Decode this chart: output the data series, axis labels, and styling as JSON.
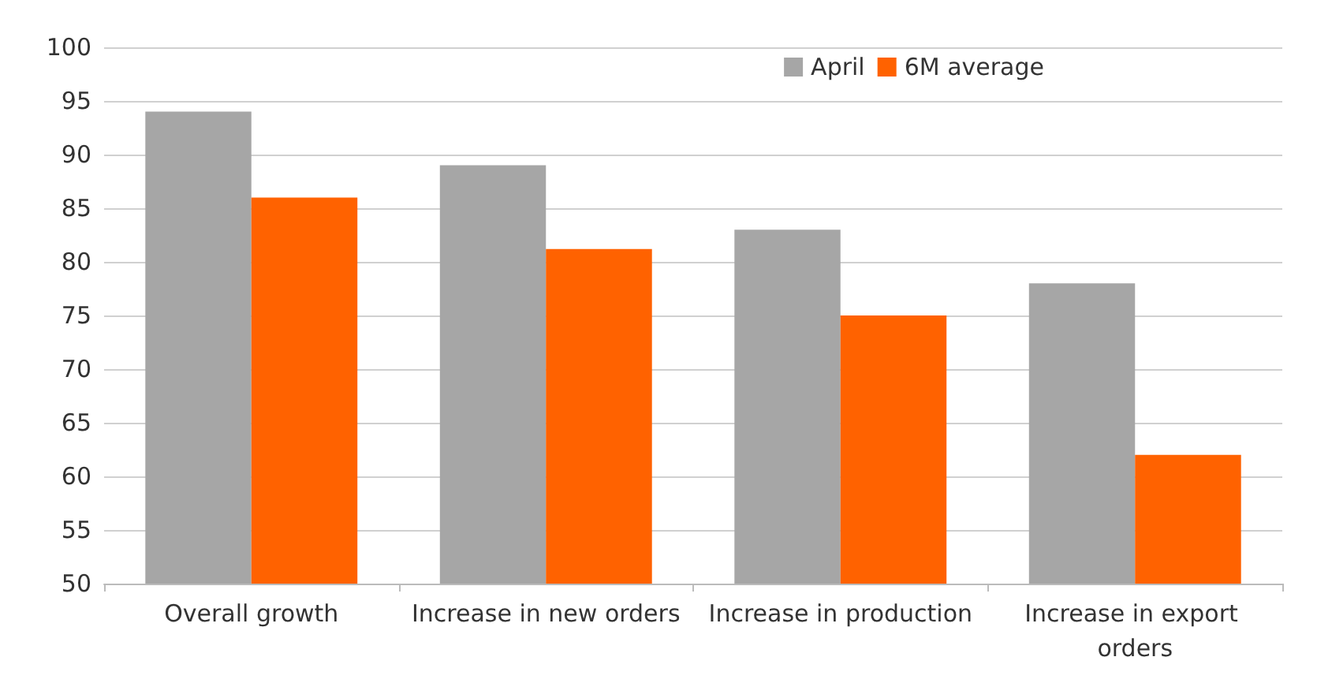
{
  "chart_data": {
    "type": "bar",
    "categories": [
      "Overall growth",
      "Increase in new orders",
      "Increase in production",
      "Increase in export orders"
    ],
    "series": [
      {
        "name": "April",
        "color": "#a6a6a6",
        "values": [
          94,
          89,
          83,
          78
        ]
      },
      {
        "name": "6M average",
        "color": "#ff6200",
        "values": [
          86,
          81.2,
          75,
          62
        ]
      }
    ],
    "ylim": [
      50,
      100
    ],
    "yticks": [
      50,
      55,
      60,
      65,
      70,
      75,
      80,
      85,
      90,
      95,
      100
    ],
    "grid": "y",
    "legend": "top right"
  }
}
